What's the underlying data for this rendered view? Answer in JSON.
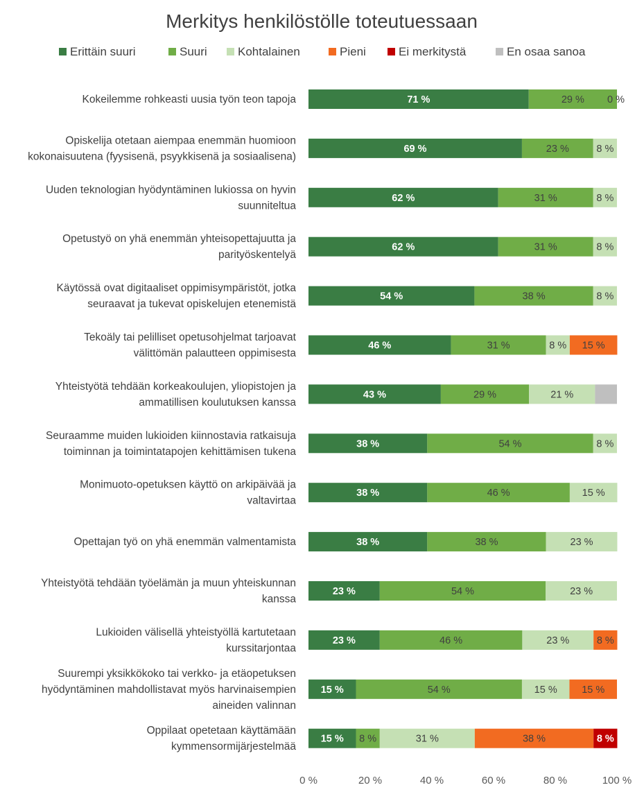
{
  "chart_data": {
    "type": "bar",
    "orientation": "horizontal",
    "stacked": "percent",
    "title": "Merkitys henkilöstölle toteutuessaan",
    "legend_position": "top",
    "grid": false,
    "xlim": [
      0,
      100
    ],
    "x_ticks": [
      "0 %",
      "20 %",
      "40 %",
      "60 %",
      "80 %",
      "100 %"
    ],
    "categories": [
      "Kokeilemme rohkeasti uusia työn teon tapoja",
      "Opiskelija otetaan aiempaa enemmän huomioon kokonaisuutena (fyysisenä, psyykkisenä ja sosiaalisena)",
      "Uuden teknologian hyödyntäminen lukiossa on hyvin suunniteltua",
      "Opetustyö on yhä enemmän yhteisopettajuutta ja parityöskentelyä",
      "Käytössä ovat digitaaliset oppimisympäristöt, jotka seuraavat ja tukevat opiskelujen etenemistä",
      "Tekoäly tai pelilliset opetusohjelmat tarjoavat välittömän palautteen oppimisesta",
      "Yhteistyötä tehdään korkeakoulujen, yliopistojen ja ammatillisen koulutuksen kanssa",
      "Seuraamme muiden lukioiden kiinnostavia ratkaisuja toiminnan ja toimintatapojen kehittämisen tukena",
      "Monimuoto-opetuksen käyttö on arkipäivää ja valtavirtaa",
      "Opettajan työ on yhä enemmän valmentamista",
      "Yhteistyötä tehdään työelämän ja muun yhteiskunnan kanssa",
      "Lukioiden välisellä yhteistyöllä kartutetaan kurssitarjontaa",
      "Suurempi yksikkökoko tai verkko- ja etäopetuksen hyödyntäminen mahdollistavat myös harvinaisempien aineiden valinnan",
      "Oppilaat opetetaan käyttämään kymmensormijärjestelmää"
    ],
    "category_lines": [
      [
        "Kokeilemme rohkeasti uusia työn teon tapoja"
      ],
      [
        "Opiskelija otetaan aiempaa enemmän huomioon",
        "kokonaisuutena (fyysisenä, psyykkisenä ja sosiaalisena)"
      ],
      [
        "Uuden teknologian hyödyntäminen lukiossa on hyvin",
        "suunniteltua"
      ],
      [
        "Opetustyö on yhä enemmän yhteisopettajuutta ja",
        "parityöskentelyä"
      ],
      [
        "Käytössä ovat digitaaliset oppimisympäristöt, jotka",
        "seuraavat ja tukevat opiskelujen etenemistä"
      ],
      [
        "Tekoäly tai pelilliset opetusohjelmat tarjoavat",
        "välittömän palautteen oppimisesta"
      ],
      [
        "Yhteistyötä tehdään korkeakoulujen, yliopistojen ja",
        "ammatillisen koulutuksen kanssa"
      ],
      [
        "Seuraamme muiden lukioiden kiinnostavia ratkaisuja",
        "toiminnan ja toimintatapojen kehittämisen tukena"
      ],
      [
        "Monimuoto-opetuksen käyttö on arkipäivää ja",
        "valtavirtaa"
      ],
      [
        "Opettajan työ on yhä enemmän valmentamista"
      ],
      [
        "Yhteistyötä tehdään työelämän ja muun yhteiskunnan",
        "kanssa"
      ],
      [
        "Lukioiden välisellä yhteistyöllä kartutetaan",
        "kurssitarjontaa"
      ],
      [
        "Suurempi yksikkökoko tai verkko- ja etäopetuksen",
        "hyödyntäminen mahdollistavat myös harvinaisempien",
        "aineiden valinnan"
      ],
      [
        "Oppilaat opetetaan käyttämään",
        "kymmensormijärjestelmää"
      ]
    ],
    "series": [
      {
        "name": "Erittäin suuri",
        "color": "#3a7d44",
        "label_color": "#ffffff",
        "label_bold": true,
        "values": [
          71.4,
          69.2,
          61.5,
          61.5,
          53.8,
          46.2,
          42.9,
          38.5,
          38.5,
          38.5,
          23.1,
          23.1,
          15.4,
          15.4
        ],
        "labels": [
          "71 %",
          "69 %",
          "62 %",
          "62 %",
          "54 %",
          "46 %",
          "43 %",
          "38 %",
          "38 %",
          "38 %",
          "23 %",
          "23 %",
          "15 %",
          "15 %"
        ]
      },
      {
        "name": "Suuri",
        "color": "#70ad47",
        "label_color": "#404040",
        "label_bold": false,
        "values": [
          28.6,
          23.1,
          30.8,
          30.8,
          38.5,
          30.8,
          28.6,
          53.8,
          46.2,
          38.5,
          53.8,
          46.2,
          53.8,
          7.7
        ],
        "labels": [
          "29 %",
          "23 %",
          "31 %",
          "31 %",
          "38 %",
          "31 %",
          "29 %",
          "54 %",
          "46 %",
          "38 %",
          "54 %",
          "46 %",
          "54 %",
          "8 %"
        ]
      },
      {
        "name": "Kohtalainen",
        "color": "#c5e0b4",
        "label_color": "#404040",
        "label_bold": false,
        "values": [
          0,
          7.7,
          7.7,
          7.7,
          7.7,
          7.7,
          21.4,
          7.7,
          15.4,
          23.1,
          23.1,
          23.1,
          15.4,
          30.8
        ],
        "labels": [
          "0 %",
          "8 %",
          "8 %",
          "8 %",
          "8 %",
          "8 %",
          "21 %",
          "8 %",
          "15 %",
          "23 %",
          "23 %",
          "23 %",
          "15 %",
          "31 %"
        ]
      },
      {
        "name": "Pieni",
        "color": "#f26b21",
        "label_color": "#404040",
        "label_bold": false,
        "values": [
          0,
          0,
          0,
          0,
          0,
          15.4,
          0,
          0,
          0,
          0,
          0,
          7.7,
          15.4,
          38.5
        ],
        "labels": [
          "",
          "",
          "",
          "",
          "",
          "15 %",
          "",
          "",
          "",
          "",
          "",
          "8 %",
          "15 %",
          "38 %"
        ]
      },
      {
        "name": "Ei merkitystä",
        "color": "#c00000",
        "label_color": "#ffffff",
        "label_bold": true,
        "values": [
          0,
          0,
          0,
          0,
          0,
          0,
          0,
          0,
          0,
          0,
          0,
          0,
          0,
          7.7
        ],
        "labels": [
          "",
          "",
          "",
          "",
          "",
          "",
          "",
          "",
          "",
          "",
          "",
          "",
          "",
          "8 %"
        ]
      },
      {
        "name": "En osaa sanoa",
        "color": "#bfbfbf",
        "label_color": "#404040",
        "label_bold": false,
        "values": [
          0,
          0,
          0,
          0,
          0,
          0,
          7.1,
          0,
          0,
          0,
          0,
          0,
          0,
          0
        ],
        "labels": [
          "",
          "",
          "",
          "",
          "",
          "",
          "",
          "",
          "",
          "",
          "",
          "",
          "",
          ""
        ]
      }
    ]
  }
}
